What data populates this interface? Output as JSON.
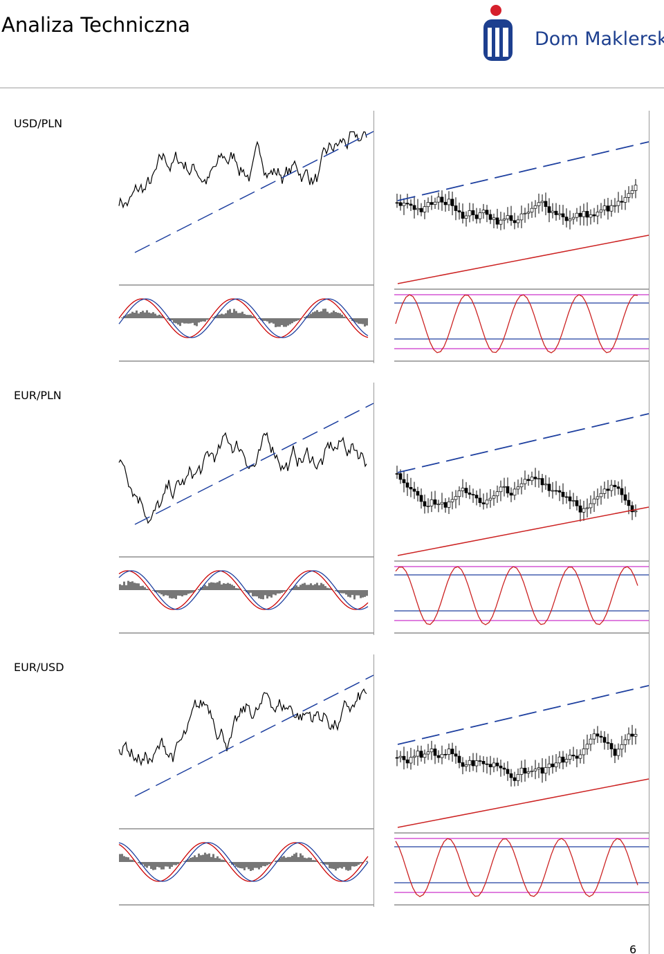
{
  "header": {
    "title": "Analiza Techniczna",
    "logo_text": "Dom Maklerski"
  },
  "sections": [
    {
      "label": "USD/PLN"
    },
    {
      "label": "EUR/PLN"
    },
    {
      "label": "EUR/USD"
    }
  ],
  "footer": {
    "page_number": "6"
  }
}
